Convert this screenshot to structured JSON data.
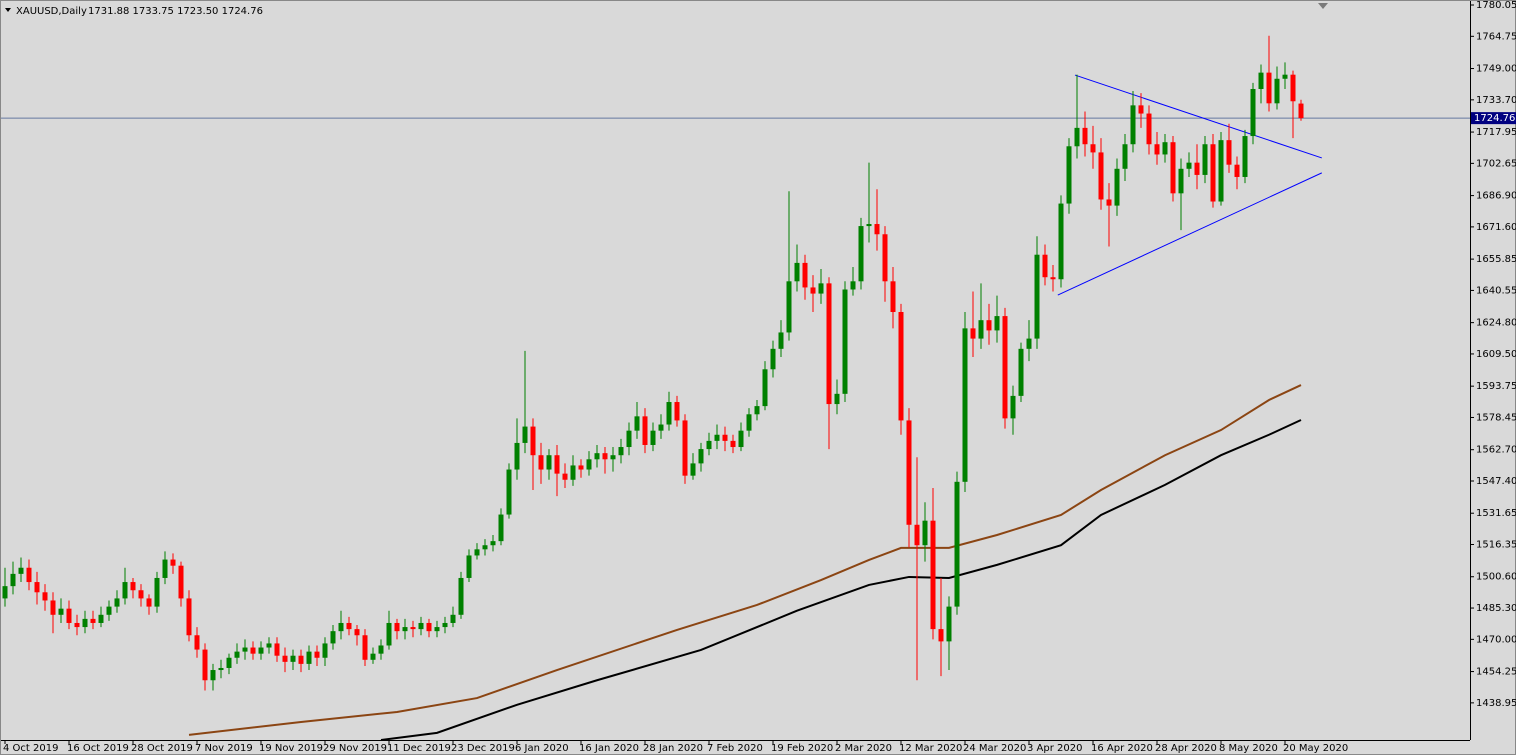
{
  "chart_data": {
    "type": "candlestick",
    "title": "XAUUSD,Daily",
    "info": "1731.88 1733.75 1723.50 1724.76",
    "open": [
      1490,
      1496,
      1502,
      1505,
      1498,
      1493,
      1489,
      1482,
      1485,
      1478,
      1476,
      1480,
      1478,
      1482,
      1486,
      1490,
      1498,
      1494,
      1490,
      1486,
      1500,
      1509,
      1506,
      1490,
      1472,
      1465,
      1450,
      1455,
      1456,
      1461,
      1464,
      1466,
      1463,
      1466,
      1468,
      1462,
      1459,
      1462,
      1458,
      1464,
      1461,
      1468,
      1474,
      1478,
      1475,
      1472,
      1460,
      1463,
      1467,
      1478,
      1474,
      1476,
      1475,
      1478,
      1474,
      1476,
      1478,
      1482,
      1500,
      1511,
      1514,
      1516,
      1518,
      1531,
      1553,
      1566,
      1574,
      1560,
      1553,
      1560,
      1551,
      1548,
      1555,
      1553,
      1558,
      1561,
      1558,
      1560,
      1564,
      1572,
      1579,
      1565,
      1572,
      1575,
      1586,
      1577,
      1550,
      1556,
      1563,
      1567,
      1570,
      1567,
      1564,
      1572,
      1580,
      1584,
      1602,
      1612,
      1620,
      1645,
      1654,
      1642,
      1639,
      1644,
      1585,
      1590,
      1641,
      1645,
      1672,
      1673,
      1668,
      1645,
      1630,
      1577,
      1526,
      1516,
      1528,
      1475,
      1469,
      1486,
      1547,
      1622,
      1617,
      1626,
      1621,
      1628,
      1578,
      1589,
      1612,
      1617,
      1658,
      1647,
      1646,
      1683,
      1711,
      1720,
      1712,
      1708,
      1685,
      1682,
      1700,
      1712,
      1731,
      1727,
      1712,
      1707,
      1713,
      1688,
      1700,
      1703,
      1697,
      1712,
      1684,
      1714,
      1702,
      1696,
      1716,
      1739,
      1747,
      1732,
      1744,
      1746,
      1731.88
    ],
    "high": [
      1505,
      1508,
      1510,
      1509,
      1503,
      1497,
      1493,
      1490,
      1489,
      1482,
      1484,
      1484,
      1486,
      1489,
      1494,
      1505,
      1500,
      1497,
      1492,
      1503,
      1513,
      1512,
      1508,
      1494,
      1476,
      1468,
      1458,
      1460,
      1463,
      1468,
      1470,
      1469,
      1469,
      1471,
      1471,
      1466,
      1465,
      1465,
      1467,
      1467,
      1471,
      1477,
      1484,
      1481,
      1477,
      1475,
      1466,
      1470,
      1484,
      1480,
      1480,
      1479,
      1481,
      1480,
      1479,
      1481,
      1486,
      1503,
      1514,
      1517,
      1519,
      1521,
      1534,
      1556,
      1578,
      1611,
      1578,
      1566,
      1563,
      1565,
      1556,
      1560,
      1558,
      1562,
      1565,
      1564,
      1564,
      1568,
      1576,
      1586,
      1583,
      1576,
      1580,
      1591,
      1589,
      1580,
      1561,
      1566,
      1571,
      1575,
      1574,
      1570,
      1576,
      1583,
      1587,
      1606,
      1616,
      1626,
      1689,
      1663,
      1658,
      1648,
      1651,
      1647,
      1597,
      1645,
      1652,
      1676,
      1703,
      1690,
      1672,
      1652,
      1634,
      1583,
      1559,
      1537,
      1544,
      1500,
      1491,
      1552,
      1630,
      1640,
      1644,
      1634,
      1638,
      1632,
      1594,
      1615,
      1626,
      1667,
      1663,
      1653,
      1687,
      1715,
      1746,
      1728,
      1721,
      1715,
      1693,
      1705,
      1717,
      1738,
      1737,
      1731,
      1718,
      1717,
      1716,
      1705,
      1708,
      1712,
      1716,
      1717,
      1718,
      1722,
      1706,
      1719,
      1742,
      1751,
      1765,
      1750,
      1752,
      1748,
      1733.75
    ],
    "low": [
      1486,
      1492,
      1498,
      1494,
      1487,
      1484,
      1473,
      1478,
      1475,
      1472,
      1473,
      1475,
      1476,
      1479,
      1483,
      1487,
      1490,
      1486,
      1482,
      1483,
      1497,
      1502,
      1486,
      1469,
      1461,
      1445,
      1445,
      1451,
      1453,
      1458,
      1460,
      1460,
      1460,
      1463,
      1459,
      1454,
      1455,
      1454,
      1455,
      1457,
      1457,
      1465,
      1470,
      1472,
      1467,
      1457,
      1458,
      1460,
      1465,
      1470,
      1470,
      1471,
      1472,
      1471,
      1471,
      1473,
      1476,
      1480,
      1498,
      1509,
      1511,
      1513,
      1516,
      1529,
      1548,
      1561,
      1543,
      1546,
      1548,
      1540,
      1544,
      1545,
      1549,
      1550,
      1554,
      1551,
      1552,
      1556,
      1560,
      1568,
      1561,
      1562,
      1568,
      1572,
      1574,
      1546,
      1548,
      1552,
      1560,
      1563,
      1562,
      1561,
      1562,
      1569,
      1577,
      1582,
      1598,
      1608,
      1616,
      1640,
      1636,
      1630,
      1634,
      1563,
      1580,
      1586,
      1638,
      1641,
      1664,
      1660,
      1635,
      1622,
      1570,
      1515,
      1450,
      1508,
      1470,
      1452,
      1455,
      1482,
      1542,
      1608,
      1612,
      1614,
      1615,
      1573,
      1570,
      1586,
      1606,
      1612,
      1643,
      1640,
      1642,
      1678,
      1705,
      1706,
      1700,
      1680,
      1662,
      1677,
      1694,
      1708,
      1720,
      1707,
      1702,
      1703,
      1684,
      1670,
      1696,
      1690,
      1693,
      1681,
      1682,
      1698,
      1690,
      1693,
      1712,
      1732,
      1728,
      1729,
      1739,
      1715,
      1723.5
    ],
    "close": [
      1496,
      1502,
      1505,
      1498,
      1493,
      1489,
      1482,
      1485,
      1478,
      1476,
      1480,
      1478,
      1482,
      1486,
      1490,
      1498,
      1494,
      1490,
      1486,
      1500,
      1509,
      1506,
      1490,
      1472,
      1465,
      1450,
      1455,
      1456,
      1461,
      1464,
      1466,
      1463,
      1466,
      1468,
      1462,
      1459,
      1462,
      1458,
      1464,
      1461,
      1468,
      1474,
      1478,
      1475,
      1472,
      1460,
      1463,
      1467,
      1478,
      1474,
      1476,
      1475,
      1478,
      1474,
      1476,
      1478,
      1482,
      1500,
      1511,
      1514,
      1516,
      1518,
      1531,
      1553,
      1566,
      1574,
      1560,
      1553,
      1560,
      1551,
      1548,
      1555,
      1553,
      1558,
      1561,
      1558,
      1560,
      1564,
      1572,
      1579,
      1565,
      1572,
      1575,
      1586,
      1577,
      1550,
      1556,
      1563,
      1567,
      1570,
      1567,
      1564,
      1572,
      1580,
      1584,
      1602,
      1612,
      1620,
      1645,
      1654,
      1642,
      1639,
      1644,
      1585,
      1590,
      1641,
      1645,
      1672,
      1673,
      1668,
      1645,
      1630,
      1577,
      1526,
      1516,
      1528,
      1475,
      1469,
      1486,
      1547,
      1622,
      1617,
      1626,
      1621,
      1628,
      1578,
      1589,
      1612,
      1617,
      1658,
      1647,
      1646,
      1683,
      1711,
      1720,
      1712,
      1708,
      1685,
      1682,
      1700,
      1712,
      1731,
      1727,
      1712,
      1707,
      1713,
      1688,
      1700,
      1703,
      1697,
      1712,
      1684,
      1714,
      1702,
      1696,
      1716,
      1739,
      1747,
      1732,
      1744,
      1746,
      1733,
      1724.76
    ],
    "close_label": "1724.76",
    "up_color": "#008000",
    "down_color": "#ff0000",
    "lines": [
      {
        "color": "#8b4513",
        "x": [
          23,
          37,
          49,
          59,
          69,
          84,
          94,
          102,
          108,
          112,
          118,
          124,
          132,
          137,
          145,
          152,
          158,
          162
        ],
        "values": [
          1423.3,
          1429.6,
          1434.5,
          1441.3,
          1455,
          1474.6,
          1486.8,
          1499,
          1508.8,
          1514.7,
          1514.7,
          1521,
          1530.8,
          1543,
          1560,
          1572.3,
          1587,
          1594.3
        ]
      },
      {
        "color": "#000000",
        "x": [
          47,
          54,
          64,
          74,
          87,
          99,
          108,
          113,
          118,
          124,
          132,
          137,
          145,
          152,
          158,
          162
        ],
        "values": [
          1420.8,
          1424.3,
          1438,
          1450,
          1464.8,
          1484,
          1496.6,
          1500.5,
          1500,
          1506.4,
          1516,
          1530.8,
          1545.5,
          1560,
          1570,
          1577.2
        ]
      }
    ],
    "trendlines": [
      {
        "color": "#0000ff",
        "x": [
          133.75,
          164.6
        ],
        "values": [
          1745.8,
          1705.3
        ]
      },
      {
        "color": "#0000ff",
        "x": [
          131.6,
          164.6
        ],
        "values": [
          1638.3,
          1698
        ]
      }
    ],
    "price_line_color": "#6478a0",
    "ylim": [
      1420.8,
      1782.5
    ],
    "yticks": [
      1438.95,
      1454.25,
      {
        "value": 1470,
        "label": "1470.00"
      },
      {
        "value": 1485.3,
        "label": "1485.30"
      },
      {
        "value": 1500.6,
        "label": "1500.60"
      },
      1516.35,
      1531.65,
      {
        "value": 1547.4,
        "label": "1547.40"
      },
      {
        "value": 1562.7,
        "label": "1562.70"
      },
      1578.45,
      1593.75,
      {
        "value": 1609.5,
        "label": "1609.50"
      },
      {
        "value": 1624.8,
        "label": "1624.80"
      },
      1640.55,
      1655.85,
      {
        "value": 1671.6,
        "label": "1671.60"
      },
      {
        "value": 1686.9,
        "label": "1686.90"
      },
      1702.65,
      1717.95,
      {
        "value": 1733.7,
        "label": "1733.70"
      },
      {
        "value": 1749,
        "label": "1749.00"
      },
      1764.75,
      1780.05
    ],
    "xticks": [
      {
        "value": 0,
        "label": "4 Oct 2019"
      },
      {
        "value": 8,
        "label": "16 Oct 2019"
      },
      {
        "value": 16,
        "label": "28 Oct 2019"
      },
      {
        "value": 24,
        "label": "7 Nov 2019"
      },
      {
        "value": 32,
        "label": "19 Nov 2019"
      },
      {
        "value": 40,
        "label": "29 Nov 2019"
      },
      {
        "value": 48,
        "label": "11 Dec 2019"
      },
      {
        "value": 56,
        "label": "23 Dec 2019"
      },
      {
        "value": 64,
        "label": "6 Jan 2020"
      },
      {
        "value": 72,
        "label": "16 Jan 2020"
      },
      {
        "value": 80,
        "label": "28 Jan 2020"
      },
      {
        "value": 88,
        "label": "7 Feb 2020"
      },
      {
        "value": 96,
        "label": "19 Feb 2020"
      },
      {
        "value": 104,
        "label": "2 Mar 2020"
      },
      {
        "value": 112,
        "label": "12 Mar 2020"
      },
      {
        "value": 120,
        "label": "24 Mar 2020"
      },
      {
        "value": 128,
        "label": "3 Apr 2020"
      },
      {
        "value": 136,
        "label": "16 Apr 2020"
      },
      {
        "value": 144,
        "label": "28 Apr 2020"
      },
      {
        "value": 152,
        "label": "8 May 2020"
      },
      {
        "value": 160,
        "label": "20 May 2020"
      }
    ]
  }
}
